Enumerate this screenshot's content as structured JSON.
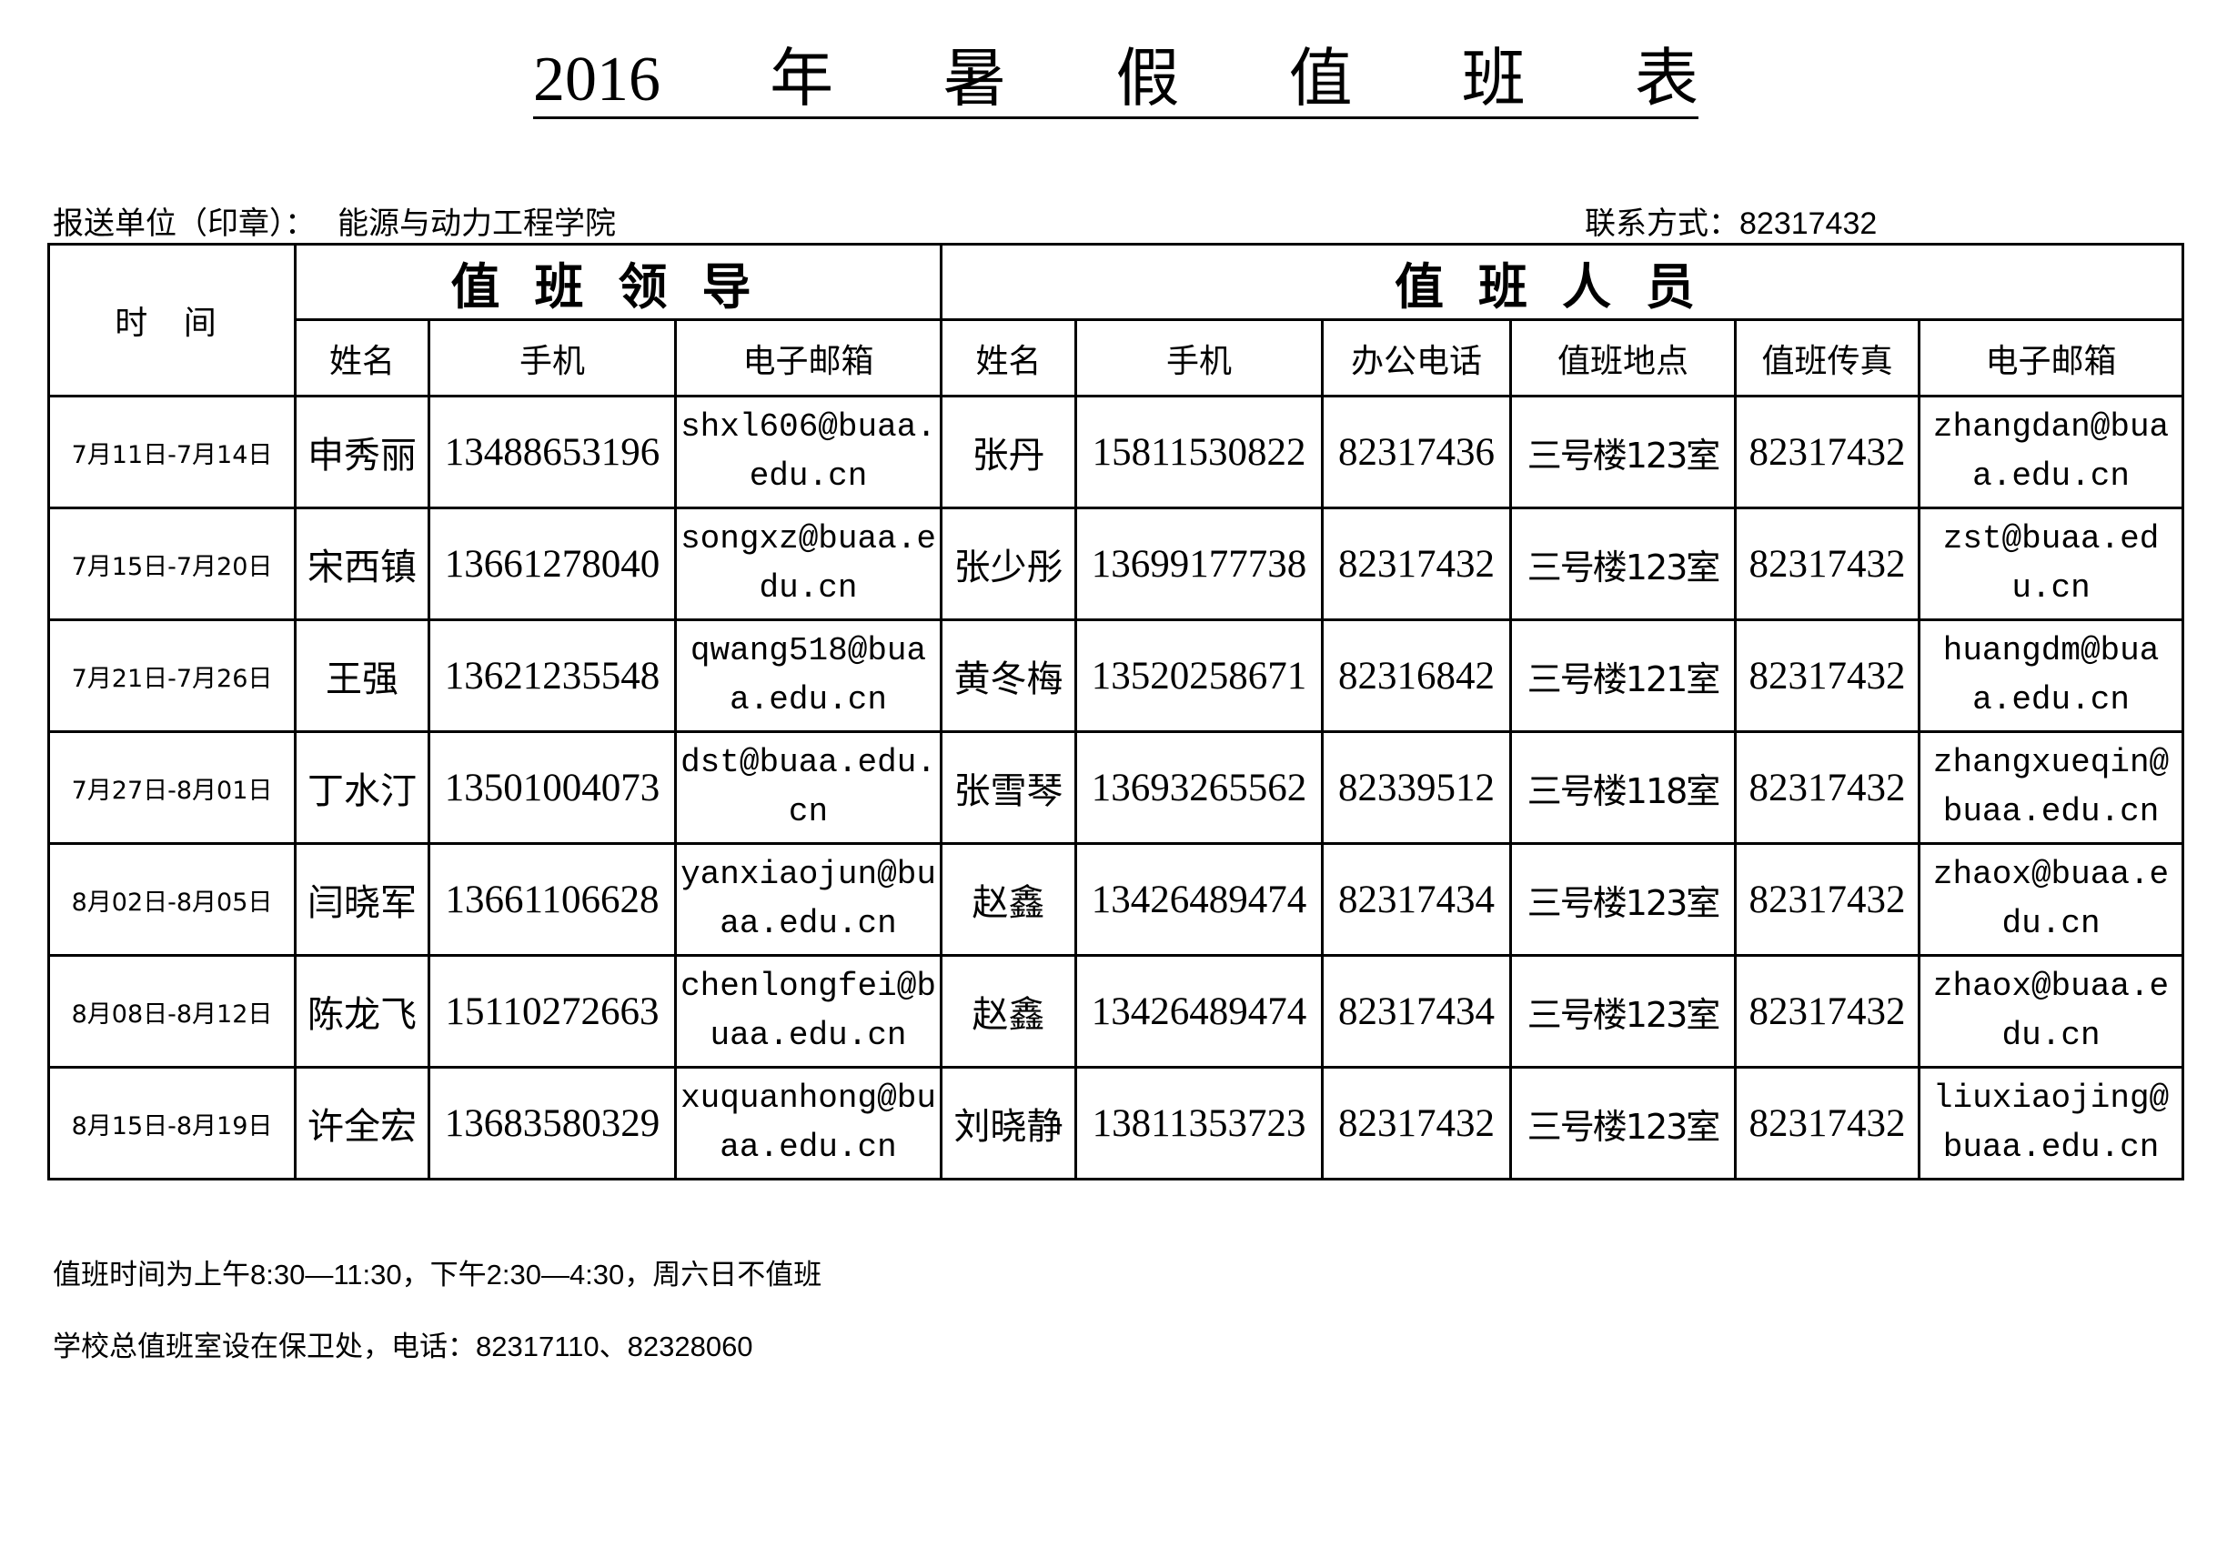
{
  "title": {
    "chars": [
      "2016",
      "年",
      "暑",
      "假",
      "值",
      "班",
      "表"
    ]
  },
  "unit": {
    "label": "报送单位（印章）：",
    "value": "能源与动力工程学院"
  },
  "contact": {
    "label": "联系方式：",
    "value": "82317432"
  },
  "table": {
    "time_header": "时 间",
    "leader_group": "值班领导",
    "staff_group": "值班人员",
    "leader_columns": [
      "姓名",
      "手机",
      "电子邮箱"
    ],
    "staff_columns": [
      "姓名",
      "手机",
      "办公电话",
      "值班地点",
      "值班传真",
      "电子邮箱"
    ],
    "rows": [
      {
        "date": "7月11日-7月14日",
        "leader_name": "申秀丽",
        "leader_mobile": "13488653196",
        "leader_email": "shxl606@buaa.edu.cn",
        "staff_name": "张丹",
        "staff_mobile": "15811530822",
        "office_phone": "82317436",
        "location": "三号楼123室",
        "fax": "82317432",
        "staff_email": "zhangdan@buaa.edu.cn"
      },
      {
        "date": "7月15日-7月20日",
        "leader_name": "宋西镇",
        "leader_mobile": "13661278040",
        "leader_email": "songxz@buaa.edu.cn",
        "staff_name": "张少彤",
        "staff_mobile": "13699177738",
        "office_phone": "82317432",
        "location": "三号楼123室",
        "fax": "82317432",
        "staff_email": "zst@buaa.edu.cn"
      },
      {
        "date": "7月21日-7月26日",
        "leader_name": "王强",
        "leader_mobile": "13621235548",
        "leader_email": "qwang518@buaa.edu.cn",
        "staff_name": "黄冬梅",
        "staff_mobile": "13520258671",
        "office_phone": "82316842",
        "location": "三号楼121室",
        "fax": "82317432",
        "staff_email": "huangdm@buaa.edu.cn"
      },
      {
        "date": "7月27日-8月01日",
        "leader_name": "丁水汀",
        "leader_mobile": "13501004073",
        "leader_email": "dst@buaa.edu.cn",
        "staff_name": "张雪琴",
        "staff_mobile": "13693265562",
        "office_phone": "82339512",
        "location": "三号楼118室",
        "fax": "82317432",
        "staff_email": "zhangxueqin@buaa.edu.cn"
      },
      {
        "date": "8月02日-8月05日",
        "leader_name": "闫晓军",
        "leader_mobile": "13661106628",
        "leader_email": "yanxiaojun@buaa.edu.cn",
        "staff_name": "赵鑫",
        "staff_mobile": "13426489474",
        "office_phone": "82317434",
        "location": "三号楼123室",
        "fax": "82317432",
        "staff_email": "zhaox@buaa.edu.cn"
      },
      {
        "date": "8月08日-8月12日",
        "leader_name": "陈龙飞",
        "leader_mobile": "15110272663",
        "leader_email": "chenlongfei@buaa.edu.cn",
        "staff_name": "赵鑫",
        "staff_mobile": "13426489474",
        "office_phone": "82317434",
        "location": "三号楼123室",
        "fax": "82317432",
        "staff_email": "zhaox@buaa.edu.cn"
      },
      {
        "date": "8月15日-8月19日",
        "leader_name": "许全宏",
        "leader_mobile": "13683580329",
        "leader_email": "xuquanhong@buaa.edu.cn",
        "staff_name": "刘晓静",
        "staff_mobile": "13811353723",
        "office_phone": "82317432",
        "location": "三号楼123室",
        "fax": "82317432",
        "staff_email": "liuxiaojing@buaa.edu.cn"
      }
    ]
  },
  "notes": [
    "值班时间为上午8:30—11:30，下午2:30—4:30，周六日不值班",
    "学校总值班室设在保卫处，电话：82317110、82328060"
  ]
}
